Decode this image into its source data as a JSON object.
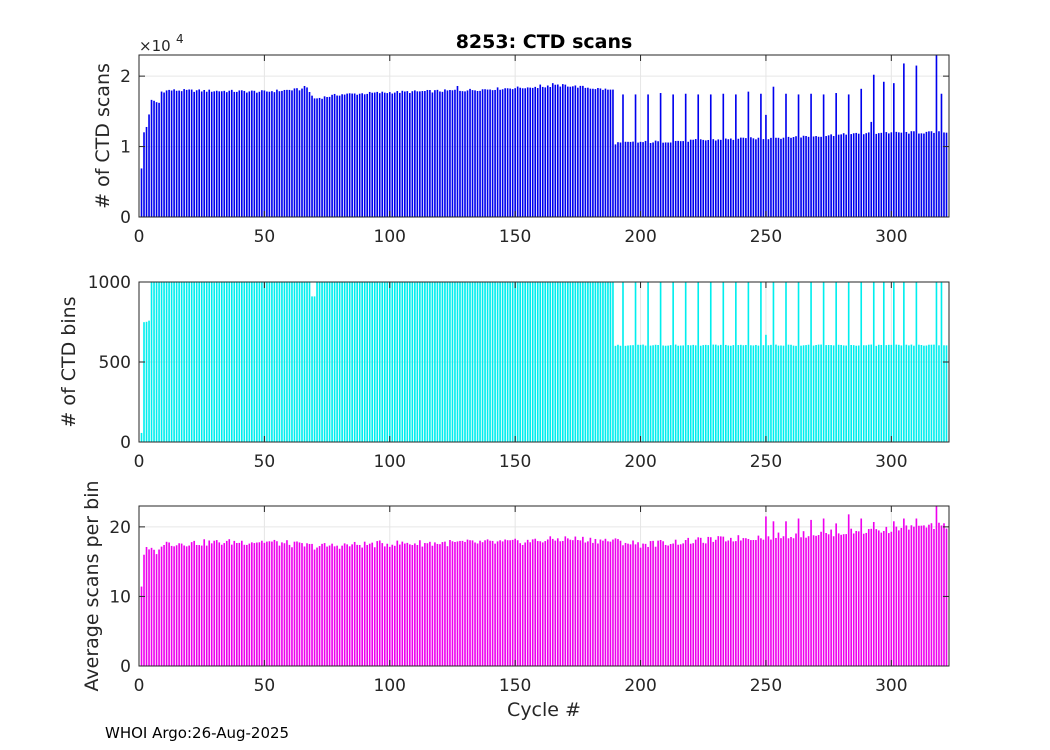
{
  "colors": {
    "scans": "#0000ee",
    "bins": "#00eeee",
    "avg": "#ee00ee",
    "grid": "#e6e6e6",
    "axis": "#262626"
  },
  "footer": "WHOI Argo:26-Aug-2025",
  "chart_data": [
    {
      "type": "bar",
      "title": "8253: CTD scans",
      "ylabel": "# of CTD scans",
      "xlabel": "",
      "exponent_label": "×10",
      "exponent_power": "4",
      "xlim": [
        0,
        323
      ],
      "ylim": [
        0,
        2.3
      ],
      "xticks": [
        0,
        50,
        100,
        150,
        200,
        250,
        300
      ],
      "yticks": [
        0,
        1,
        2
      ],
      "xtick_labels": [
        "0",
        "50",
        "100",
        "150",
        "200",
        "250",
        "300"
      ],
      "ytick_labels": [
        "0",
        "1",
        "2"
      ],
      "series_description": "CTD scans per profile (in units of 10^4) vs cycle number",
      "anchors": [
        [
          1,
          0.68
        ],
        [
          2,
          1.2
        ],
        [
          3,
          1.28
        ],
        [
          5,
          1.65
        ],
        [
          8,
          1.62
        ],
        [
          9,
          1.78
        ],
        [
          12,
          1.8
        ],
        [
          50,
          1.78
        ],
        [
          67,
          1.82
        ],
        [
          70,
          1.68
        ],
        [
          80,
          1.74
        ],
        [
          100,
          1.77
        ],
        [
          130,
          1.8
        ],
        [
          160,
          1.85
        ],
        [
          170,
          1.87
        ],
        [
          189,
          1.8
        ],
        [
          190,
          1.05
        ],
        [
          250,
          1.12
        ],
        [
          300,
          1.2
        ],
        [
          322,
          1.2
        ]
      ],
      "spikes": [
        [
          66,
          1.86
        ],
        [
          127,
          1.86
        ],
        [
          155,
          1.84
        ],
        [
          160,
          1.88
        ],
        [
          165,
          1.9
        ],
        [
          193,
          1.74
        ],
        [
          198,
          1.74
        ],
        [
          203,
          1.74
        ],
        [
          208,
          1.76
        ],
        [
          213,
          1.74
        ],
        [
          218,
          1.75
        ],
        [
          223,
          1.74
        ],
        [
          228,
          1.74
        ],
        [
          233,
          1.75
        ],
        [
          238,
          1.74
        ],
        [
          243,
          1.78
        ],
        [
          248,
          1.75
        ],
        [
          250,
          1.45
        ],
        [
          253,
          1.85
        ],
        [
          258,
          1.75
        ],
        [
          263,
          1.74
        ],
        [
          268,
          1.75
        ],
        [
          273,
          1.74
        ],
        [
          278,
          1.76
        ],
        [
          283,
          1.74
        ],
        [
          288,
          1.82
        ],
        [
          292,
          1.35
        ],
        [
          293,
          2.02
        ],
        [
          297,
          1.92
        ],
        [
          301,
          1.9
        ],
        [
          305,
          2.18
        ],
        [
          310,
          2.15
        ],
        [
          318,
          2.36
        ],
        [
          320,
          1.75
        ]
      ],
      "noise": 0.02,
      "bar_width_fraction": 0.65
    },
    {
      "type": "bar",
      "title": "",
      "ylabel": "# of CTD bins",
      "xlabel": "",
      "xlim": [
        0,
        323
      ],
      "ylim": [
        0,
        1000
      ],
      "xticks": [
        0,
        50,
        100,
        150,
        200,
        250,
        300
      ],
      "yticks": [
        0,
        500,
        1000
      ],
      "xtick_labels": [
        "0",
        "50",
        "100",
        "150",
        "200",
        "250",
        "300"
      ],
      "ytick_labels": [
        "0",
        "500",
        "1000"
      ],
      "series_description": "CTD bins per profile vs cycle number",
      "anchors": [
        [
          1,
          60
        ],
        [
          2,
          750
        ],
        [
          4,
          755
        ],
        [
          5,
          1000
        ],
        [
          189,
          1000
        ],
        [
          190,
          605
        ],
        [
          322,
          605
        ]
      ],
      "spikes": [
        [
          69,
          910
        ],
        [
          70,
          910
        ],
        [
          193,
          1000
        ],
        [
          198,
          1000
        ],
        [
          203,
          1000
        ],
        [
          208,
          1000
        ],
        [
          213,
          1000
        ],
        [
          218,
          1000
        ],
        [
          223,
          1000
        ],
        [
          228,
          1000
        ],
        [
          233,
          1000
        ],
        [
          238,
          1000
        ],
        [
          243,
          1000
        ],
        [
          248,
          1000
        ],
        [
          250,
          670
        ],
        [
          253,
          1000
        ],
        [
          258,
          1000
        ],
        [
          263,
          1000
        ],
        [
          268,
          1000
        ],
        [
          273,
          1000
        ],
        [
          278,
          1000
        ],
        [
          283,
          1000
        ],
        [
          288,
          1000
        ],
        [
          293,
          1000
        ],
        [
          297,
          1000
        ],
        [
          301,
          1000
        ],
        [
          305,
          1000
        ],
        [
          310,
          1000
        ],
        [
          318,
          1000
        ],
        [
          320,
          1000
        ]
      ],
      "noise": 4,
      "bar_width_fraction": 0.65
    },
    {
      "type": "bar",
      "title": "",
      "ylabel": "Average scans per bin",
      "xlabel": "Cycle #",
      "xlim": [
        0,
        323
      ],
      "ylim": [
        0,
        23
      ],
      "xticks": [
        0,
        50,
        100,
        150,
        200,
        250,
        300
      ],
      "yticks": [
        0,
        10,
        20
      ],
      "xtick_labels": [
        "0",
        "50",
        "100",
        "150",
        "200",
        "250",
        "300"
      ],
      "ytick_labels": [
        "0",
        "10",
        "20"
      ],
      "series_description": "Average CTD scans per bin vs cycle number",
      "anchors": [
        [
          1,
          11.5
        ],
        [
          2,
          16.2
        ],
        [
          3,
          16.7
        ],
        [
          8,
          16.4
        ],
        [
          9,
          17.6
        ],
        [
          50,
          17.9
        ],
        [
          70,
          17.2
        ],
        [
          100,
          17.6
        ],
        [
          150,
          17.8
        ],
        [
          170,
          18.3
        ],
        [
          189,
          18.0
        ],
        [
          200,
          17.5
        ],
        [
          250,
          18.6
        ],
        [
          300,
          19.6
        ],
        [
          322,
          20.2
        ]
      ],
      "spikes": [
        [
          250,
          21.5
        ],
        [
          253,
          20.8
        ],
        [
          258,
          20.8
        ],
        [
          263,
          21.2
        ],
        [
          268,
          21.0
        ],
        [
          273,
          21.2
        ],
        [
          278,
          20.5
        ],
        [
          283,
          21.8
        ],
        [
          288,
          21.2
        ],
        [
          293,
          20.7
        ],
        [
          301,
          20.8
        ],
        [
          305,
          21.2
        ],
        [
          310,
          21.2
        ],
        [
          318,
          23.0
        ],
        [
          320,
          20.2
        ]
      ],
      "noise": 0.5,
      "bar_width_fraction": 0.65
    }
  ]
}
